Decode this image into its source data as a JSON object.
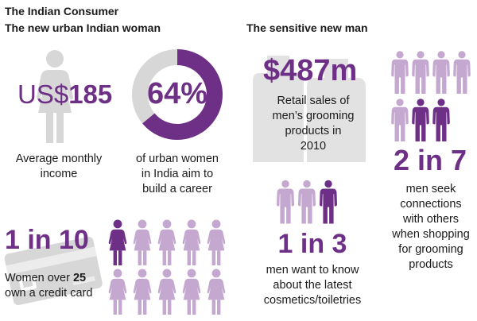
{
  "header": {
    "title": "The Indian Consumer",
    "left_section": "The new urban Indian woman",
    "right_section": "The sensitive new man"
  },
  "stats": {
    "income": {
      "currency": "US$",
      "amount": "185",
      "caption_line1": "Average monthly",
      "caption_line2": "income"
    },
    "career": {
      "percent_label": "64%",
      "percent_value": 64,
      "caption_line1": "of urban women",
      "caption_line2": "in India aim to",
      "caption_line3": "build a career"
    },
    "credit": {
      "ratio": "1 in 10",
      "caption_line1_pre": "Women over ",
      "caption_line1_num": "25",
      "caption_line2": "own a credit card",
      "highlighted": 1,
      "total": 10
    },
    "retail": {
      "amount": "$487m",
      "caption_line1": "Retail sales of",
      "caption_line2": "men’s grooming",
      "caption_line3": "products in",
      "caption_line4": "2010"
    },
    "cosmetics": {
      "ratio": "1 in 3",
      "caption_line1": "men want to know",
      "caption_line2": "about the latest",
      "caption_line3": "cosmetics/toiletries",
      "highlighted": 1,
      "total": 3
    },
    "connections": {
      "ratio": "2 in 7",
      "caption_line1": "men seek",
      "caption_line2": "connections",
      "caption_line3": "with others",
      "caption_line4": "when shopping",
      "caption_line5": "for grooming",
      "caption_line6": "products",
      "highlighted": 2,
      "total": 7
    }
  },
  "colors": {
    "accent": "#6e2f86",
    "light": "#c4a8cf",
    "grey": "#d7d7d7",
    "text": "#1a1a1a"
  },
  "icons": {
    "woman": "woman-icon",
    "man": "man-icon",
    "card": "credit-card-icon",
    "bottles": "grooming-bottles-icon",
    "donut": "donut-chart"
  }
}
